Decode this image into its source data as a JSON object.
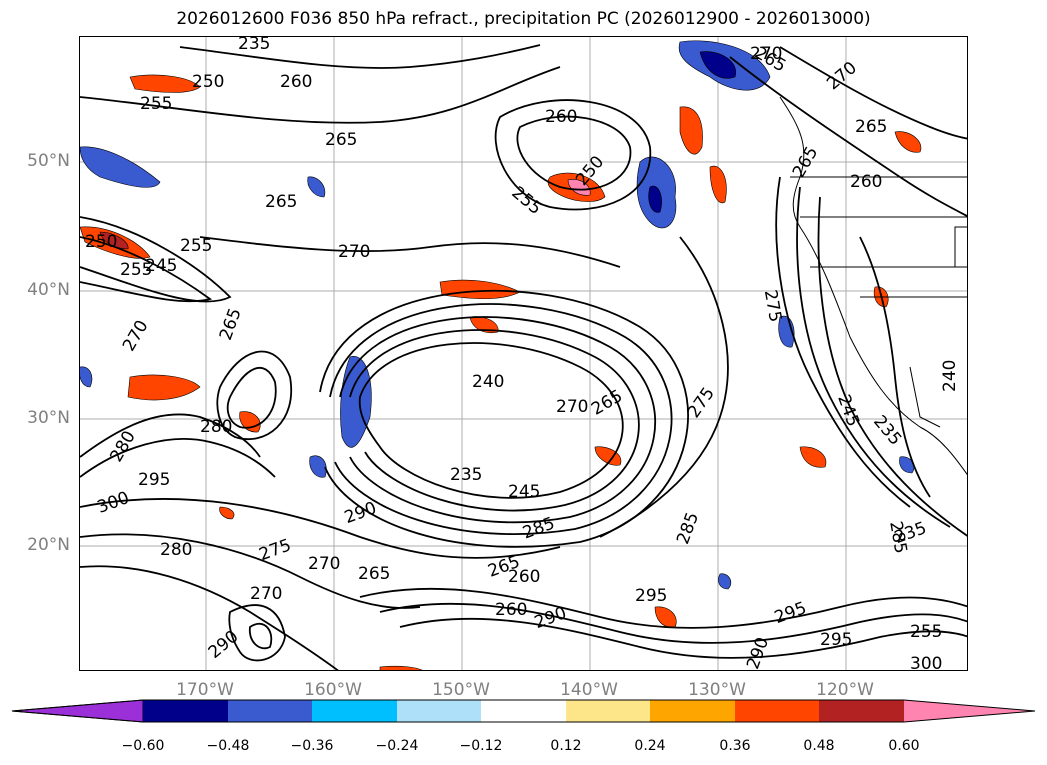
{
  "title": "2026012600 F036 850 hPa refract., precipitation PC (2026012900 - 2026013000)",
  "lat_labels": [
    "50°N",
    "40°N",
    "30°N",
    "20°N"
  ],
  "lon_labels": [
    "170°W",
    "160°W",
    "150°W",
    "140°W",
    "130°W",
    "120°W"
  ],
  "colorbar": {
    "ticks": [
      "−0.60",
      "−0.48",
      "−0.36",
      "−0.24",
      "−0.12",
      "0.12",
      "0.24",
      "0.36",
      "0.48",
      "0.60"
    ],
    "colors": [
      "#9b30d9",
      "#00008b",
      "#3a5bd0",
      "#00bfff",
      "#aee0fa",
      "#ffffff",
      "#fde68a",
      "#ffa500",
      "#ff4500",
      "#b22222",
      "#ff85b0"
    ]
  },
  "contour_labels": [
    "235",
    "255",
    "250",
    "260",
    "255",
    "265",
    "260",
    "255",
    "250",
    "265",
    "270",
    "250",
    "255",
    "245",
    "270",
    "265",
    "275",
    "240",
    "270",
    "265",
    "280",
    "285",
    "295",
    "300",
    "290",
    "235",
    "245",
    "280",
    "275",
    "270",
    "265",
    "265",
    "260",
    "270",
    "260",
    "290",
    "285",
    "295",
    "295",
    "295",
    "290",
    "245",
    "235",
    "240",
    "235",
    "255",
    "260",
    "265",
    "270",
    "275",
    "280",
    "270",
    "265",
    "285",
    "265",
    "290",
    "300"
  ]
}
